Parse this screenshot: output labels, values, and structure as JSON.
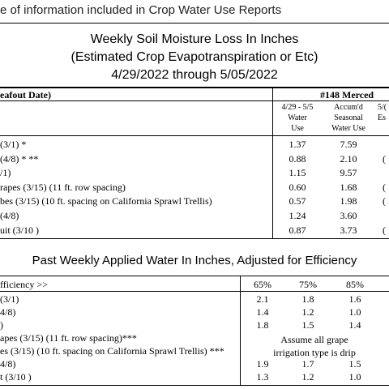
{
  "header_text": "e of information included in Crop Water Use Reports",
  "loss_section": {
    "title_line1": "Weekly Soil Moisture Loss In Inches",
    "title_line2": "(Estimated Crop Evapotranspiration or Etc)",
    "title_line3": "4/29/2022 through 5/05/2022",
    "left_header": "eafout Date)",
    "station_header": "#148 Merced",
    "col1_header": [
      "4/29 - 5/5",
      "Water",
      "Use"
    ],
    "col2_header": [
      "Accum'd",
      "Seasonal",
      "Water Use"
    ],
    "col3_header": [
      "5/(",
      "Es"
    ],
    "rows": [
      {
        "label": "(3/1) *",
        "water_use": "1.37",
        "seasonal": "7.59",
        "extra": ""
      },
      {
        "label": "(4/8) *  **",
        "water_use": "0.88",
        "seasonal": "2.10",
        "extra": "("
      },
      {
        "label": "/1)",
        "water_use": "1.15",
        "seasonal": "9.57",
        "extra": ""
      },
      {
        "label": "rapes (3/15) (11 ft. row spacing)",
        "water_use": "0.60",
        "seasonal": "1.68",
        "extra": "("
      },
      {
        "label": "bes (3/15) (10 ft. spacing on California Sprawl Trellis)",
        "water_use": "0.57",
        "seasonal": "1.98",
        "extra": "("
      },
      {
        "label": "(4/8)",
        "water_use": "1.24",
        "seasonal": "3.60",
        "extra": ""
      },
      {
        "label": "uit (3/10 )",
        "water_use": "0.87",
        "seasonal": "3.73",
        "extra": "("
      }
    ]
  },
  "applied_section": {
    "title": "Past Weekly Applied Water In Inches, Adjusted for Efficiency",
    "left_header": "fficiency >>",
    "eff_headers": [
      "65%",
      "75%",
      "85%"
    ],
    "rows": [
      {
        "label": "(3/1)",
        "v": [
          "2.1",
          "1.8",
          "1.6"
        ]
      },
      {
        "label": "4/8)",
        "v": [
          "1.4",
          "1.2",
          "1.0"
        ]
      },
      {
        "label": ")",
        "v": [
          "1.8",
          "1.5",
          "1.4"
        ]
      },
      {
        "label": "apes (3/15) (11 ft. row spacing)***",
        "v": [
          "",
          "",
          ""
        ]
      },
      {
        "label": "es (3/15) (10 ft. spacing on California Sprawl Trellis) ***",
        "v": [
          "",
          "",
          ""
        ]
      },
      {
        "label": "4/8)",
        "v": [
          "1.9",
          "1.7",
          "1.5"
        ]
      },
      {
        "label": "t (3/10 )",
        "v": [
          "1.3",
          "1.2",
          "1.0"
        ]
      }
    ],
    "grape_note_line1": "Assume all grape",
    "grape_note_line2": "irrigation type is drip"
  }
}
